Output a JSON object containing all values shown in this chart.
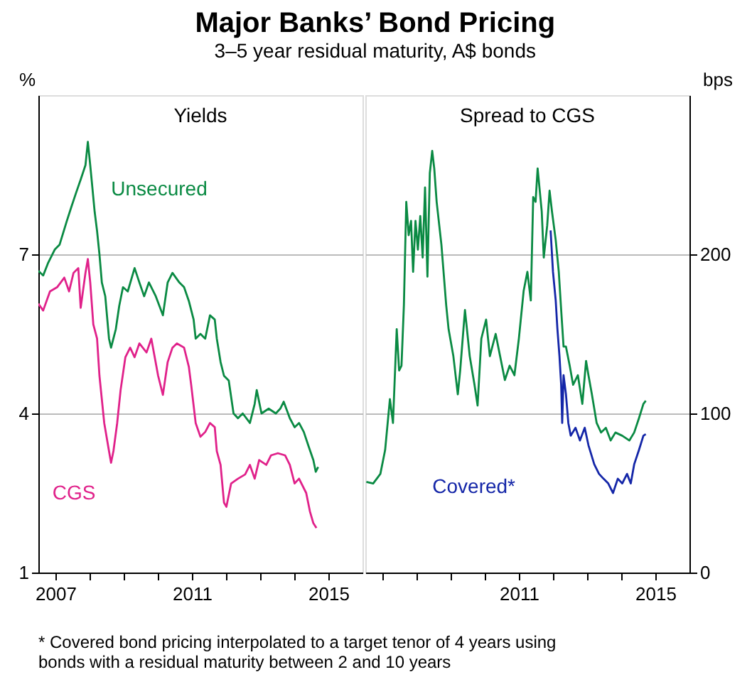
{
  "chart_data": [
    {
      "type": "line",
      "title": "Major Banks’ Bond Pricing",
      "subtitle": "3–5 year residual maturity, A$ bonds",
      "annotations": [
        "Yields"
      ],
      "ylabel": "%",
      "xlim": [
        2006.5,
        2016
      ],
      "xticks": [
        2007,
        {
          "value": 2008,
          "label": null
        },
        {
          "value": 2009,
          "label": null
        },
        {
          "value": 2010,
          "label": null
        },
        2011,
        {
          "value": 2012,
          "label": null
        },
        {
          "value": 2013,
          "label": null
        },
        {
          "value": 2014,
          "label": null
        },
        2015
      ],
      "ylim": [
        1,
        10
      ],
      "yticks": [
        1,
        4,
        7
      ],
      "grid": "y",
      "series": [
        {
          "name": "Unsecured",
          "color": "#0a8a43",
          "x": [
            2006.5,
            2006.64,
            2006.78,
            2006.98,
            2007.12,
            2007.33,
            2007.46,
            2007.6,
            2007.74,
            2007.88,
            2007.95,
            2008.02,
            2008.15,
            2008.22,
            2008.29,
            2008.36,
            2008.46,
            2008.57,
            2008.63,
            2008.77,
            2008.87,
            2008.98,
            2009.12,
            2009.32,
            2009.46,
            2009.6,
            2009.74,
            2009.94,
            2010.15,
            2010.29,
            2010.43,
            2010.63,
            2010.77,
            2010.91,
            2011.05,
            2011.11,
            2011.25,
            2011.39,
            2011.53,
            2011.67,
            2011.73,
            2011.84,
            2011.94,
            2012.08,
            2012.22,
            2012.35,
            2012.49,
            2012.7,
            2012.84,
            2012.9,
            2013.04,
            2013.25,
            2013.46,
            2013.59,
            2013.69,
            2013.87,
            2014.01,
            2014.14,
            2014.28,
            2014.42,
            2014.56,
            2014.63,
            2014.7
          ],
          "values": [
            6.69,
            6.6,
            6.83,
            7.09,
            7.18,
            7.62,
            7.88,
            8.15,
            8.41,
            8.68,
            9.12,
            8.68,
            7.8,
            7.44,
            7.0,
            6.47,
            6.21,
            5.41,
            5.24,
            5.59,
            6.03,
            6.38,
            6.3,
            6.74,
            6.47,
            6.21,
            6.47,
            6.21,
            5.85,
            6.47,
            6.65,
            6.47,
            6.38,
            6.12,
            5.77,
            5.41,
            5.5,
            5.41,
            5.85,
            5.77,
            5.41,
            4.97,
            4.71,
            4.62,
            4.0,
            3.91,
            4.0,
            3.82,
            4.18,
            4.44,
            4.0,
            4.09,
            4.0,
            4.09,
            4.22,
            3.91,
            3.74,
            3.82,
            3.65,
            3.38,
            3.12,
            2.9,
            2.99
          ]
        },
        {
          "name": "CGS",
          "color": "#e0218a",
          "x": [
            2006.5,
            2006.64,
            2006.84,
            2007.05,
            2007.26,
            2007.4,
            2007.53,
            2007.67,
            2007.74,
            2007.88,
            2007.95,
            2008.02,
            2008.11,
            2008.22,
            2008.29,
            2008.43,
            2008.57,
            2008.63,
            2008.7,
            2008.81,
            2008.91,
            2009.05,
            2009.19,
            2009.32,
            2009.46,
            2009.67,
            2009.81,
            2010.01,
            2010.15,
            2010.29,
            2010.43,
            2010.56,
            2010.77,
            2010.91,
            2010.98,
            2011.11,
            2011.25,
            2011.39,
            2011.53,
            2011.67,
            2011.73,
            2011.84,
            2011.94,
            2012.01,
            2012.15,
            2012.35,
            2012.56,
            2012.7,
            2012.84,
            2012.97,
            2013.18,
            2013.32,
            2013.52,
            2013.73,
            2013.87,
            2014.01,
            2014.14,
            2014.35,
            2014.46,
            2014.56,
            2014.65
          ],
          "values": [
            6.07,
            5.94,
            6.3,
            6.38,
            6.56,
            6.3,
            6.65,
            6.74,
            5.99,
            6.65,
            6.91,
            6.47,
            5.68,
            5.41,
            4.71,
            3.82,
            3.29,
            3.07,
            3.29,
            3.82,
            4.44,
            5.06,
            5.24,
            5.06,
            5.32,
            5.15,
            5.41,
            4.71,
            4.35,
            4.97,
            5.24,
            5.32,
            5.24,
            4.88,
            4.53,
            3.82,
            3.56,
            3.65,
            3.82,
            3.74,
            3.29,
            3.03,
            2.32,
            2.24,
            2.68,
            2.77,
            2.85,
            3.03,
            2.77,
            3.12,
            3.03,
            3.21,
            3.25,
            3.21,
            3.03,
            2.68,
            2.77,
            2.5,
            2.15,
            1.93,
            1.84
          ]
        }
      ]
    },
    {
      "type": "line",
      "annotations": [
        "Spread to CGS",
        "*    Covered bond pricing interpolated to a target tenor of 4 years using bonds with a residual maturity between 2 and 10 years"
      ],
      "ylabel": "bps",
      "xlim": [
        2006.5,
        2016
      ],
      "xticks": [
        {
          "value": 2007,
          "label": null
        },
        {
          "value": 2008,
          "label": null
        },
        {
          "value": 2009,
          "label": null
        },
        {
          "value": 2010,
          "label": null
        },
        2011,
        {
          "value": 2012,
          "label": null
        },
        {
          "value": 2013,
          "label": null
        },
        {
          "value": 2014,
          "label": null
        },
        2015
      ],
      "ylim": [
        0,
        300
      ],
      "yticks": [
        0,
        100,
        200
      ],
      "grid": "y",
      "series": [
        {
          "color": "#0a8a43",
          "x": [
            2006.53,
            2006.73,
            2006.94,
            2007.08,
            2007.22,
            2007.31,
            2007.42,
            2007.49,
            2007.56,
            2007.63,
            2007.7,
            2007.77,
            2007.84,
            2007.9,
            2007.97,
            2008.04,
            2008.11,
            2008.18,
            2008.25,
            2008.32,
            2008.39,
            2008.46,
            2008.52,
            2008.59,
            2008.73,
            2008.87,
            2008.94,
            2009.08,
            2009.21,
            2009.28,
            2009.42,
            2009.56,
            2009.7,
            2009.79,
            2009.9,
            2010.04,
            2010.15,
            2010.32,
            2010.45,
            2010.59,
            2010.73,
            2010.87,
            2011.0,
            2011.14,
            2011.25,
            2011.35,
            2011.42,
            2011.49,
            2011.55,
            2011.67,
            2011.73,
            2011.83,
            2011.9,
            2011.97,
            2012.08,
            2012.17,
            2012.24,
            2012.31,
            2012.38,
            2012.49,
            2012.59,
            2012.73,
            2012.86,
            2012.97,
            2013.04,
            2013.14,
            2013.28,
            2013.41,
            2013.55,
            2013.69,
            2013.83,
            2014.03,
            2014.24,
            2014.38,
            2014.52,
            2014.65,
            2014.72
          ],
          "values": [
            57,
            56,
            62,
            77,
            109,
            94,
            153,
            127,
            130,
            168,
            233,
            212,
            221,
            189,
            221,
            203,
            224,
            198,
            242,
            186,
            251,
            265,
            254,
            233,
            206,
            168,
            153,
            136,
            112,
            127,
            165,
            136,
            118,
            105,
            147,
            159,
            136,
            150,
            136,
            121,
            130,
            124,
            147,
            177,
            189,
            171,
            236,
            233,
            254,
            227,
            198,
            218,
            240,
            227,
            209,
            189,
            165,
            142,
            142,
            130,
            118,
            124,
            106,
            133,
            124,
            112,
            94,
            88,
            91,
            83,
            88,
            86,
            83,
            88,
            97,
            106,
            108
          ]
        },
        {
          "name": "Covered*",
          "color": "#1426a8",
          "x": [
            2011.93,
            2012.0,
            2012.08,
            2012.13,
            2012.19,
            2012.24,
            2012.27,
            2012.31,
            2012.38,
            2012.45,
            2012.52,
            2012.66,
            2012.79,
            2012.93,
            2013.04,
            2013.21,
            2013.35,
            2013.48,
            2013.62,
            2013.76,
            2013.9,
            2014.03,
            2014.17,
            2014.28,
            2014.38,
            2014.52,
            2014.65,
            2014.72
          ],
          "values": [
            215,
            189,
            171,
            153,
            136,
            118,
            94,
            124,
            112,
            94,
            86,
            91,
            83,
            91,
            80,
            68,
            62,
            59,
            56,
            50,
            59,
            56,
            62,
            56,
            68,
            77,
            86,
            87
          ]
        }
      ]
    }
  ]
}
